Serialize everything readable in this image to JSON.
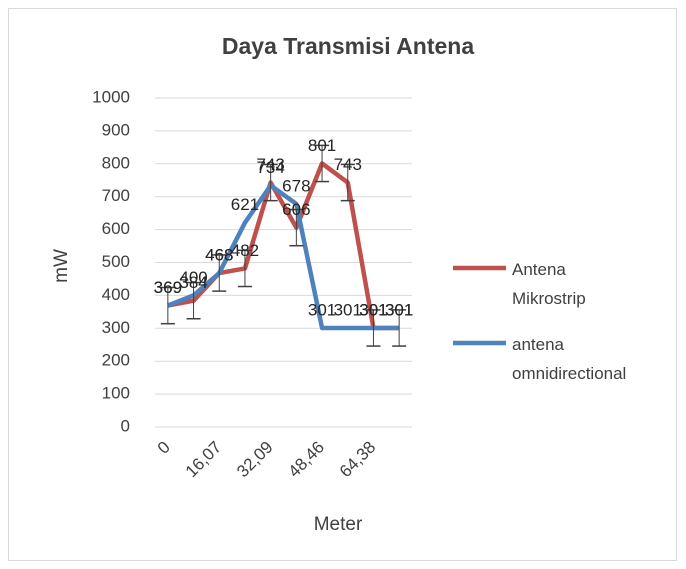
{
  "chart_data": {
    "type": "line",
    "title": "Daya Transmisi Antena",
    "categories": [
      "0",
      null,
      "16,07",
      null,
      "32,09",
      null,
      "48,46",
      null,
      "64,38",
      null
    ],
    "x_label": "Meter",
    "y_label": "mW",
    "series": [
      {
        "name": "Antena Mikrostrip",
        "color": "#c0504d",
        "values": [
          369,
          384,
          468,
          482,
          743,
          606,
          801,
          743,
          301,
          301
        ],
        "errors": [
          55,
          55,
          55,
          55,
          55,
          55,
          55,
          55,
          55,
          55
        ]
      },
      {
        "name": " antena omnidirectional",
        "color": "#4f81bd",
        "values": [
          369,
          400,
          468,
          621,
          734,
          678,
          301,
          301,
          301,
          301
        ]
      }
    ],
    "ylim": [
      0,
      1000
    ],
    "yticks": [
      0,
      100,
      200,
      300,
      400,
      500,
      600,
      700,
      800,
      900,
      1000
    ],
    "grid": true,
    "legend": "right"
  }
}
